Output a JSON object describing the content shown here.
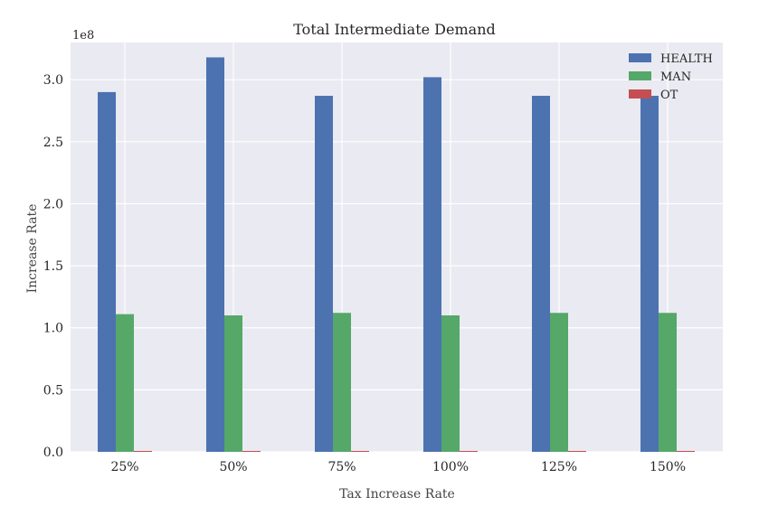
{
  "chart_data": {
    "type": "bar",
    "title": "Total Intermediate Demand",
    "xlabel": "Tax Increase Rate",
    "ylabel": "Increase Rate",
    "offset_text": "1e8",
    "categories": [
      "25%",
      "50%",
      "75%",
      "100%",
      "125%",
      "150%"
    ],
    "series": [
      {
        "name": "HEALTH",
        "color": "#4c72b0",
        "values": [
          290000000,
          318000000,
          287000000,
          302000000,
          287000000,
          287000000
        ]
      },
      {
        "name": "MAN",
        "color": "#55a868",
        "values": [
          111000000,
          110000000,
          112000000,
          110000000,
          112000000,
          112000000
        ]
      },
      {
        "name": "OT",
        "color": "#c44e52",
        "values": [
          500000,
          500000,
          500000,
          500000,
          500000,
          500000
        ]
      }
    ],
    "ylim": [
      0,
      330000000
    ],
    "yticks": [
      0,
      50000000,
      100000000,
      150000000,
      200000000,
      250000000,
      300000000
    ],
    "ytick_labels": [
      "0.0",
      "0.5",
      "1.0",
      "1.5",
      "2.0",
      "2.5",
      "3.0"
    ],
    "grid": true,
    "legend_position": "top-right",
    "background": "#eaeaf2"
  }
}
